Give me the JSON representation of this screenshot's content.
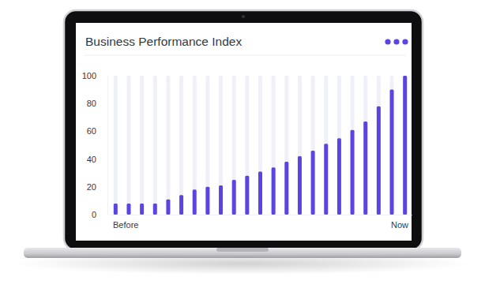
{
  "chart_data": {
    "type": "bar",
    "title": "Business Performance Index",
    "categories": [
      "Before",
      null,
      null,
      null,
      null,
      null,
      null,
      null,
      null,
      null,
      null,
      null,
      null,
      null,
      null,
      null,
      null,
      null,
      null,
      null,
      null,
      null,
      "Now"
    ],
    "values": [
      8,
      8,
      8,
      8,
      11,
      14,
      18,
      20,
      21,
      25,
      28,
      31,
      34,
      38,
      42,
      46,
      51,
      55,
      61,
      67,
      78,
      90,
      100
    ],
    "color": "#5a45e2",
    "ylim": [
      0,
      100
    ],
    "yticks": [
      0,
      20,
      40,
      60,
      80,
      100
    ],
    "grid": false
  }
}
